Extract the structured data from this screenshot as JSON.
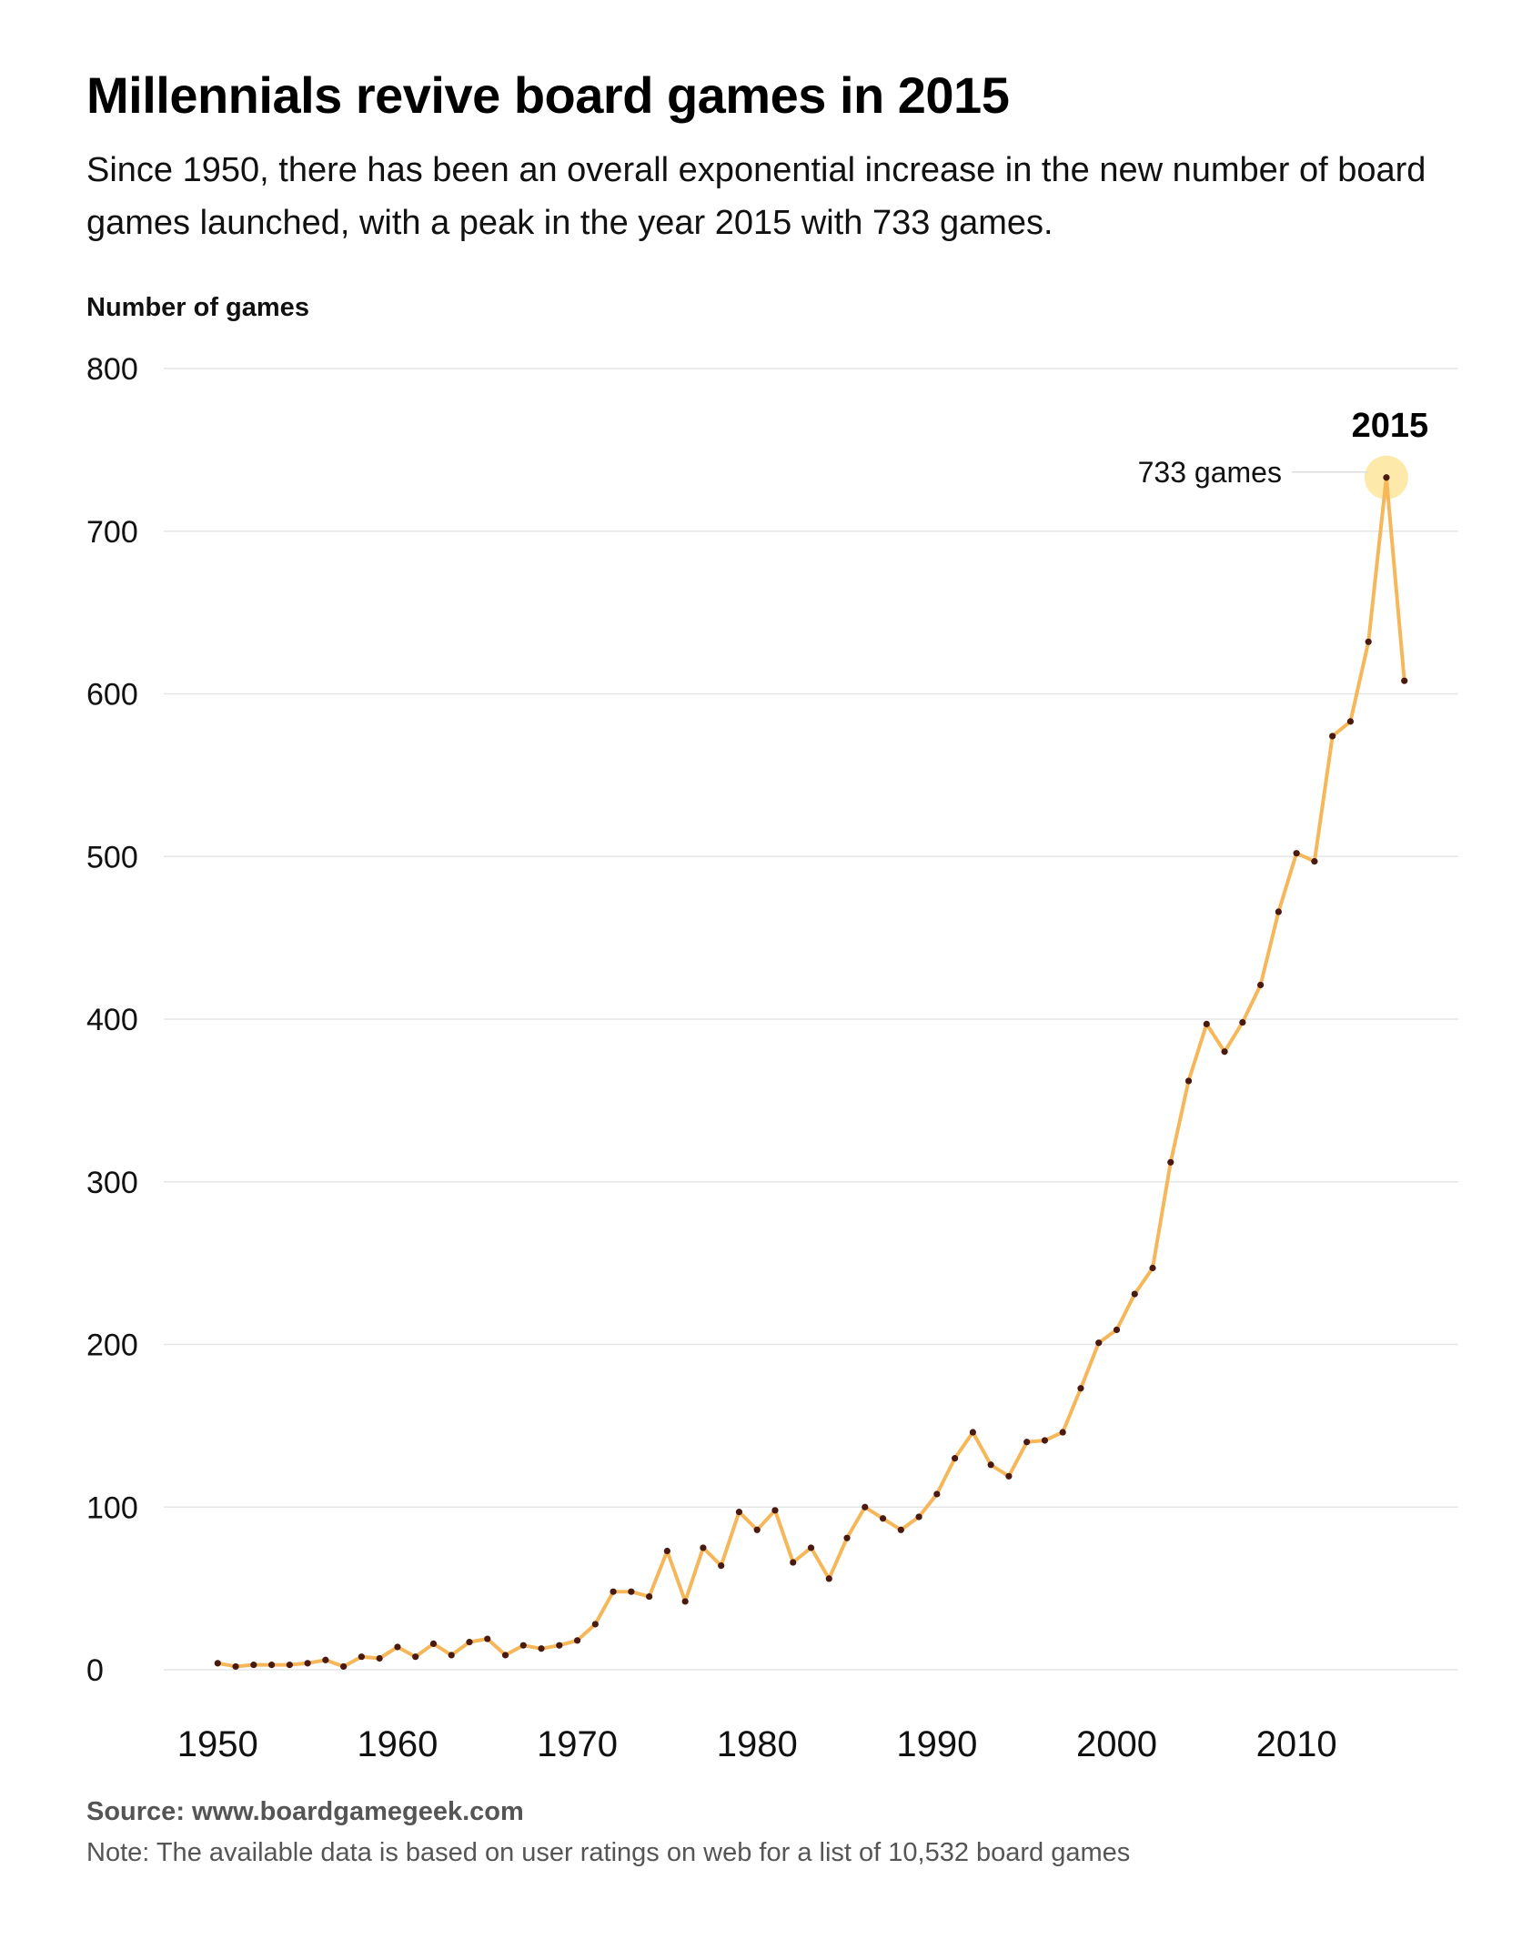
{
  "header": {
    "title": "Millennials revive board games in 2015",
    "subtitle": "Since 1950, there has been an overall exponential increase in the new number of board games launched, with a peak in the year 2015 with 733 games."
  },
  "footer": {
    "source": "Source: www.boardgamegeek.com",
    "note": "Note: The available data is based on user ratings on web for a list of 10,532 board games"
  },
  "chart_data": {
    "type": "line",
    "title": "Millennials revive board games in 2015",
    "ylabel": "Number of games",
    "xlabel": "",
    "xlim": [
      1947,
      2019
    ],
    "ylim": [
      0,
      800
    ],
    "x_ticks": [
      1950,
      1960,
      1970,
      1980,
      1990,
      2000,
      2010
    ],
    "y_ticks": [
      0,
      100,
      200,
      300,
      400,
      500,
      600,
      700,
      800
    ],
    "grid": true,
    "series": [
      {
        "name": "",
        "color": "#f5b75a",
        "x": [
          1950,
          1951,
          1952,
          1953,
          1954,
          1955,
          1956,
          1957,
          1958,
          1959,
          1960,
          1961,
          1962,
          1963,
          1964,
          1965,
          1966,
          1967,
          1968,
          1969,
          1970,
          1971,
          1972,
          1973,
          1974,
          1975,
          1976,
          1977,
          1978,
          1979,
          1980,
          1981,
          1982,
          1983,
          1984,
          1985,
          1986,
          1987,
          1988,
          1989,
          1990,
          1991,
          1992,
          1993,
          1994,
          1995,
          1996,
          1997,
          1998,
          1999,
          2000,
          2001,
          2002,
          2003,
          2004,
          2005,
          2006,
          2007,
          2008,
          2009,
          2010,
          2011,
          2012,
          2013,
          2014,
          2015,
          2016
        ],
        "y": [
          4,
          2,
          3,
          3,
          3,
          4,
          6,
          2,
          8,
          7,
          14,
          8,
          16,
          9,
          17,
          19,
          9,
          15,
          13,
          15,
          18,
          28,
          48,
          48,
          45,
          73,
          42,
          75,
          64,
          97,
          86,
          98,
          66,
          75,
          56,
          81,
          100,
          93,
          86,
          94,
          108,
          130,
          146,
          126,
          119,
          140,
          141,
          146,
          173,
          201,
          209,
          231,
          247,
          312,
          362,
          397,
          380,
          398,
          421,
          466,
          502,
          497,
          574,
          583,
          632,
          733,
          608
        ]
      }
    ],
    "annotation": {
      "year_label": "2015",
      "value_label": "733 games",
      "x": 2015,
      "y": 733,
      "highlight_color": "#fde59a"
    },
    "colors": {
      "line": "#f5b75a",
      "point": "#4a1a10",
      "grid": "#e6e6e6"
    }
  }
}
